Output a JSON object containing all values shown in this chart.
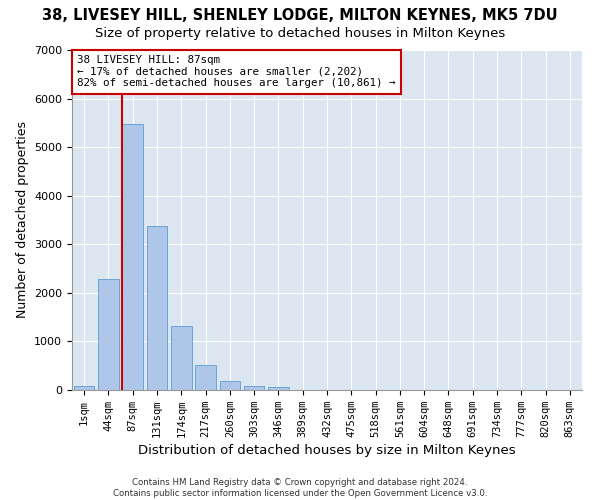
{
  "title_line1": "38, LIVESEY HILL, SHENLEY LODGE, MILTON KEYNES, MK5 7DU",
  "title_line2": "Size of property relative to detached houses in Milton Keynes",
  "xlabel": "Distribution of detached houses by size in Milton Keynes",
  "ylabel": "Number of detached properties",
  "bar_labels": [
    "1sqm",
    "44sqm",
    "87sqm",
    "131sqm",
    "174sqm",
    "217sqm",
    "260sqm",
    "303sqm",
    "346sqm",
    "389sqm",
    "432sqm",
    "475sqm",
    "518sqm",
    "561sqm",
    "604sqm",
    "648sqm",
    "691sqm",
    "734sqm",
    "777sqm",
    "820sqm",
    "863sqm"
  ],
  "bar_values": [
    80,
    2280,
    5480,
    3380,
    1310,
    510,
    185,
    90,
    70,
    0,
    0,
    0,
    0,
    0,
    0,
    0,
    0,
    0,
    0,
    0,
    0
  ],
  "bar_color": "#aec6e8",
  "bar_edge_color": "#5b9bd5",
  "vline_index": 2,
  "vline_color": "#cc0000",
  "annotation_text": "38 LIVESEY HILL: 87sqm\n← 17% of detached houses are smaller (2,202)\n82% of semi-detached houses are larger (10,861) →",
  "annotation_box_color": "#ffffff",
  "annotation_box_edge": "#cc0000",
  "ylim": [
    0,
    7000
  ],
  "yticks": [
    0,
    1000,
    2000,
    3000,
    4000,
    5000,
    6000,
    7000
  ],
  "background_color": "#dce6f0",
  "footnote": "Contains HM Land Registry data © Crown copyright and database right 2024.\nContains public sector information licensed under the Open Government Licence v3.0."
}
